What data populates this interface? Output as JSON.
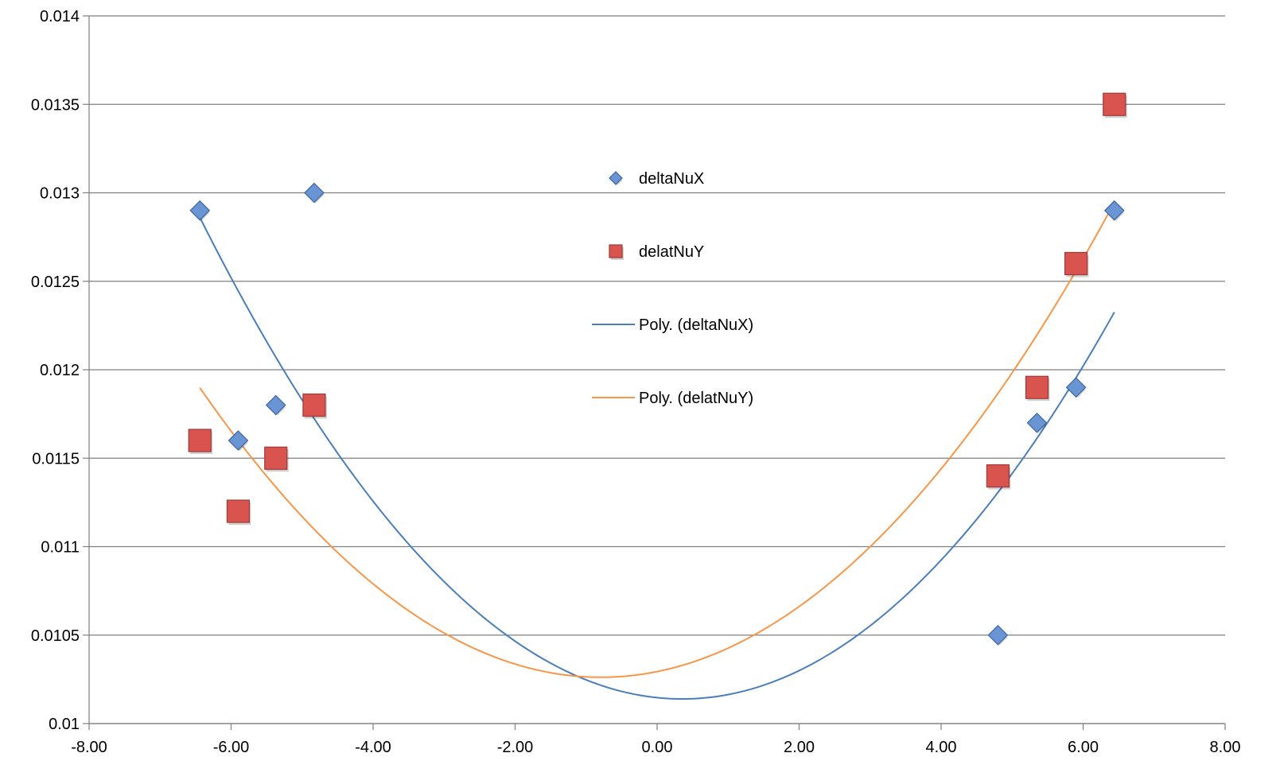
{
  "chart_data": {
    "type": "scatter",
    "title": "",
    "xlabel": "",
    "ylabel": "",
    "xlim": [
      -8,
      8
    ],
    "ylim": [
      0.01,
      0.014
    ],
    "grid": "horizontal",
    "legend_position": "center",
    "x_ticks": [
      "-8.00",
      "-6.00",
      "-4.00",
      "-2.00",
      "0.00",
      "2.00",
      "4.00",
      "6.00",
      "8.00"
    ],
    "y_ticks": [
      "0.01",
      "0.0105",
      "0.011",
      "0.0115",
      "0.012",
      "0.0125",
      "0.013",
      "0.0135",
      "0.014"
    ],
    "series": [
      {
        "name": "deltaNuX",
        "marker": "diamond",
        "color": "#4a7ebb",
        "x": [
          -6.44,
          -5.9,
          -5.37,
          -4.83,
          4.8,
          5.35,
          5.9,
          6.44
        ],
        "y": [
          0.0129,
          0.0116,
          0.0118,
          0.013,
          0.0105,
          0.0117,
          0.0119,
          0.0129
        ]
      },
      {
        "name": "delatNuY",
        "marker": "square",
        "color": "#c0504d",
        "x": [
          -6.44,
          -5.9,
          -5.37,
          -4.83,
          4.8,
          5.35,
          5.9,
          6.44
        ],
        "y": [
          0.0116,
          0.0112,
          0.0115,
          0.0118,
          0.0114,
          0.0119,
          0.0126,
          0.0135
        ]
      }
    ],
    "trendlines": [
      {
        "name": "Poly. (deltaNuX)",
        "color": "#4a7ebb",
        "order": 2,
        "x_range": [
          -6.44,
          6.44
        ]
      },
      {
        "name": "Poly. (delatNuY)",
        "color": "#f79646",
        "order": 2,
        "x_range": [
          -6.44,
          6.44
        ]
      }
    ]
  }
}
